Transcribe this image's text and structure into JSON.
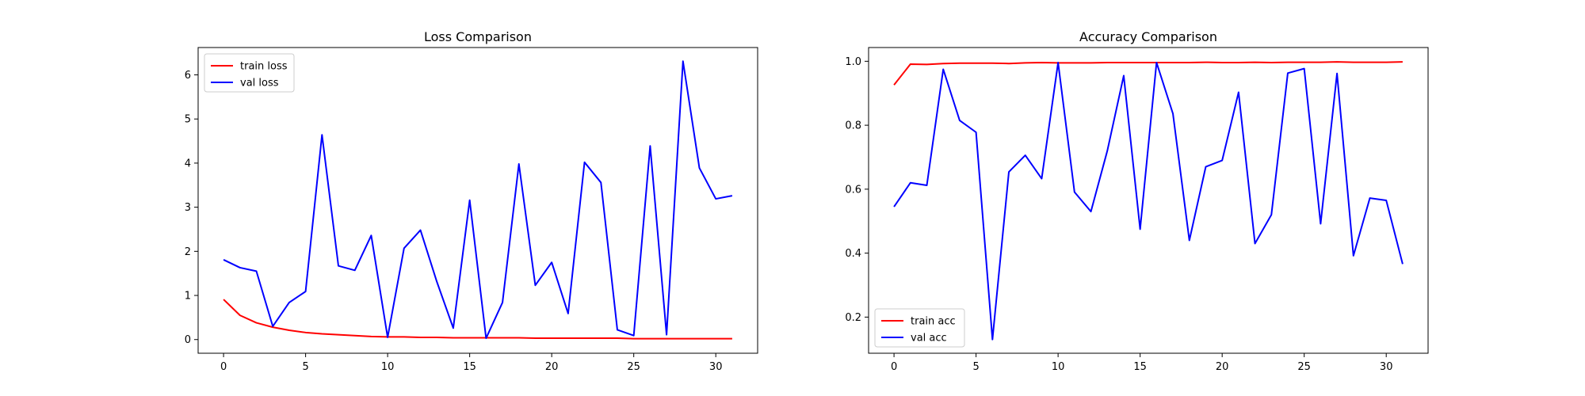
{
  "chart_data": [
    {
      "type": "line",
      "title": "Loss Comparison",
      "xlabel": "",
      "ylabel": "",
      "xlim": [
        -1.55,
        32.55
      ],
      "ylim": [
        -0.31,
        6.62
      ],
      "xticks": [
        0,
        5,
        10,
        15,
        20,
        25,
        30
      ],
      "yticks": [
        0,
        1,
        2,
        3,
        4,
        5,
        6
      ],
      "grid": false,
      "legend": "top-left",
      "x": [
        0,
        1,
        2,
        3,
        4,
        5,
        6,
        7,
        8,
        9,
        10,
        11,
        12,
        13,
        14,
        15,
        16,
        17,
        18,
        19,
        20,
        21,
        22,
        23,
        24,
        25,
        26,
        27,
        28,
        29,
        30,
        31
      ],
      "series": [
        {
          "name": "train loss",
          "color": "#ff0000",
          "values": [
            0.91,
            0.55,
            0.38,
            0.28,
            0.21,
            0.16,
            0.13,
            0.11,
            0.09,
            0.07,
            0.06,
            0.06,
            0.05,
            0.05,
            0.04,
            0.04,
            0.04,
            0.04,
            0.04,
            0.03,
            0.03,
            0.03,
            0.03,
            0.03,
            0.03,
            0.02,
            0.02,
            0.02,
            0.02,
            0.02,
            0.02,
            0.02
          ]
        },
        {
          "name": "val loss",
          "color": "#0000ff",
          "values": [
            1.81,
            1.63,
            1.55,
            0.3,
            0.84,
            1.09,
            4.64,
            1.67,
            1.57,
            2.36,
            0.05,
            2.07,
            2.48,
            1.31,
            0.26,
            3.16,
            0.03,
            0.84,
            3.98,
            1.23,
            1.75,
            0.59,
            4.02,
            3.56,
            0.22,
            0.09,
            4.39,
            0.11,
            6.31,
            3.89,
            3.19,
            3.26
          ]
        }
      ]
    },
    {
      "type": "line",
      "title": "Accuracy Comparison",
      "xlabel": "",
      "ylabel": "",
      "xlim": [
        -1.55,
        32.55
      ],
      "ylim": [
        0.087,
        1.043
      ],
      "xticks": [
        0,
        5,
        10,
        15,
        20,
        25,
        30
      ],
      "yticks": [
        "0.2",
        "0.4",
        "0.6",
        "0.8",
        "1.0"
      ],
      "grid": false,
      "legend": "bottom-left",
      "x": [
        0,
        1,
        2,
        3,
        4,
        5,
        6,
        7,
        8,
        9,
        10,
        11,
        12,
        13,
        14,
        15,
        16,
        17,
        18,
        19,
        20,
        21,
        22,
        23,
        24,
        25,
        26,
        27,
        28,
        29,
        30,
        31
      ],
      "series": [
        {
          "name": "train acc",
          "color": "#ff0000",
          "values": [
            0.926,
            0.991,
            0.99,
            0.993,
            0.994,
            0.994,
            0.994,
            0.993,
            0.995,
            0.996,
            0.995,
            0.995,
            0.995,
            0.996,
            0.996,
            0.996,
            0.996,
            0.996,
            0.996,
            0.997,
            0.996,
            0.996,
            0.997,
            0.996,
            0.997,
            0.997,
            0.997,
            0.998,
            0.997,
            0.997,
            0.997,
            0.998
          ]
        },
        {
          "name": "val acc",
          "color": "#0000ff",
          "values": [
            0.545,
            0.62,
            0.612,
            0.975,
            0.815,
            0.778,
            0.13,
            0.654,
            0.706,
            0.633,
            0.996,
            0.591,
            0.53,
            0.72,
            0.955,
            0.475,
            0.996,
            0.836,
            0.44,
            0.67,
            0.69,
            0.903,
            0.43,
            0.52,
            0.963,
            0.977,
            0.492,
            0.962,
            0.392,
            0.572,
            0.565,
            0.366
          ]
        }
      ]
    }
  ]
}
